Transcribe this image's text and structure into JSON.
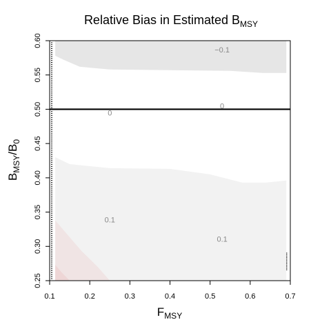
{
  "chart_data": {
    "type": "heatmap",
    "title": {
      "main": "Relative Bias in Estimated B",
      "sub": "MSY"
    },
    "xlabel": {
      "main": "F",
      "sub": "MSY"
    },
    "ylabel": {
      "main": "B",
      "sub": "MSY",
      "sep": "/B",
      "sub2": "0"
    },
    "xlim": [
      0.1,
      0.7
    ],
    "ylim": [
      0.25,
      0.6
    ],
    "x_ticks": [
      "0.1",
      "0.2",
      "0.3",
      "0.4",
      "0.5",
      "0.6",
      "0.7"
    ],
    "y_ticks": [
      "0.25",
      "0.30",
      "0.35",
      "0.40",
      "0.45",
      "0.50",
      "0.55",
      "0.60"
    ],
    "reference_line_y": 0.5,
    "regions": [
      {
        "level": "-0.1",
        "color": "#e6e6e6",
        "boundary": [
          [
            0.114,
            0.6
          ],
          [
            0.114,
            0.578
          ],
          [
            0.135,
            0.572
          ],
          [
            0.175,
            0.562
          ],
          [
            0.25,
            0.558
          ],
          [
            0.4,
            0.557
          ],
          [
            0.55,
            0.556
          ],
          [
            0.63,
            0.553
          ],
          [
            0.69,
            0.553
          ],
          [
            0.69,
            0.6
          ]
        ]
      },
      {
        "level": "0.1",
        "color": "#f2f2f2",
        "boundary": [
          [
            0.114,
            0.25
          ],
          [
            0.114,
            0.43
          ],
          [
            0.15,
            0.42
          ],
          [
            0.25,
            0.414
          ],
          [
            0.4,
            0.413
          ],
          [
            0.5,
            0.405
          ],
          [
            0.58,
            0.393
          ],
          [
            0.64,
            0.393
          ],
          [
            0.69,
            0.396
          ],
          [
            0.69,
            0.25
          ]
        ]
      },
      {
        "level": "0.2",
        "color": "#f0e4e4",
        "boundary": [
          [
            0.114,
            0.25
          ],
          [
            0.114,
            0.338
          ],
          [
            0.14,
            0.32
          ],
          [
            0.18,
            0.293
          ],
          [
            0.22,
            0.27
          ],
          [
            0.25,
            0.25
          ]
        ]
      },
      {
        "level": "0.3",
        "color": "#eed6d6",
        "boundary": [
          [
            0.114,
            0.25
          ],
          [
            0.114,
            0.273
          ],
          [
            0.13,
            0.262
          ],
          [
            0.15,
            0.25
          ]
        ]
      }
    ],
    "contour_labels": [
      {
        "text": "−0.1",
        "x": 0.53,
        "y": 0.587
      },
      {
        "text": "0",
        "x": 0.25,
        "y": 0.495
      },
      {
        "text": "0",
        "x": 0.53,
        "y": 0.505
      },
      {
        "text": "0.1",
        "x": 0.25,
        "y": 0.339
      },
      {
        "text": "0.1",
        "x": 0.53,
        "y": 0.311
      }
    ],
    "colors": {
      "line": "#000000",
      "axis": "#000000",
      "contour_label": "#888888"
    }
  }
}
